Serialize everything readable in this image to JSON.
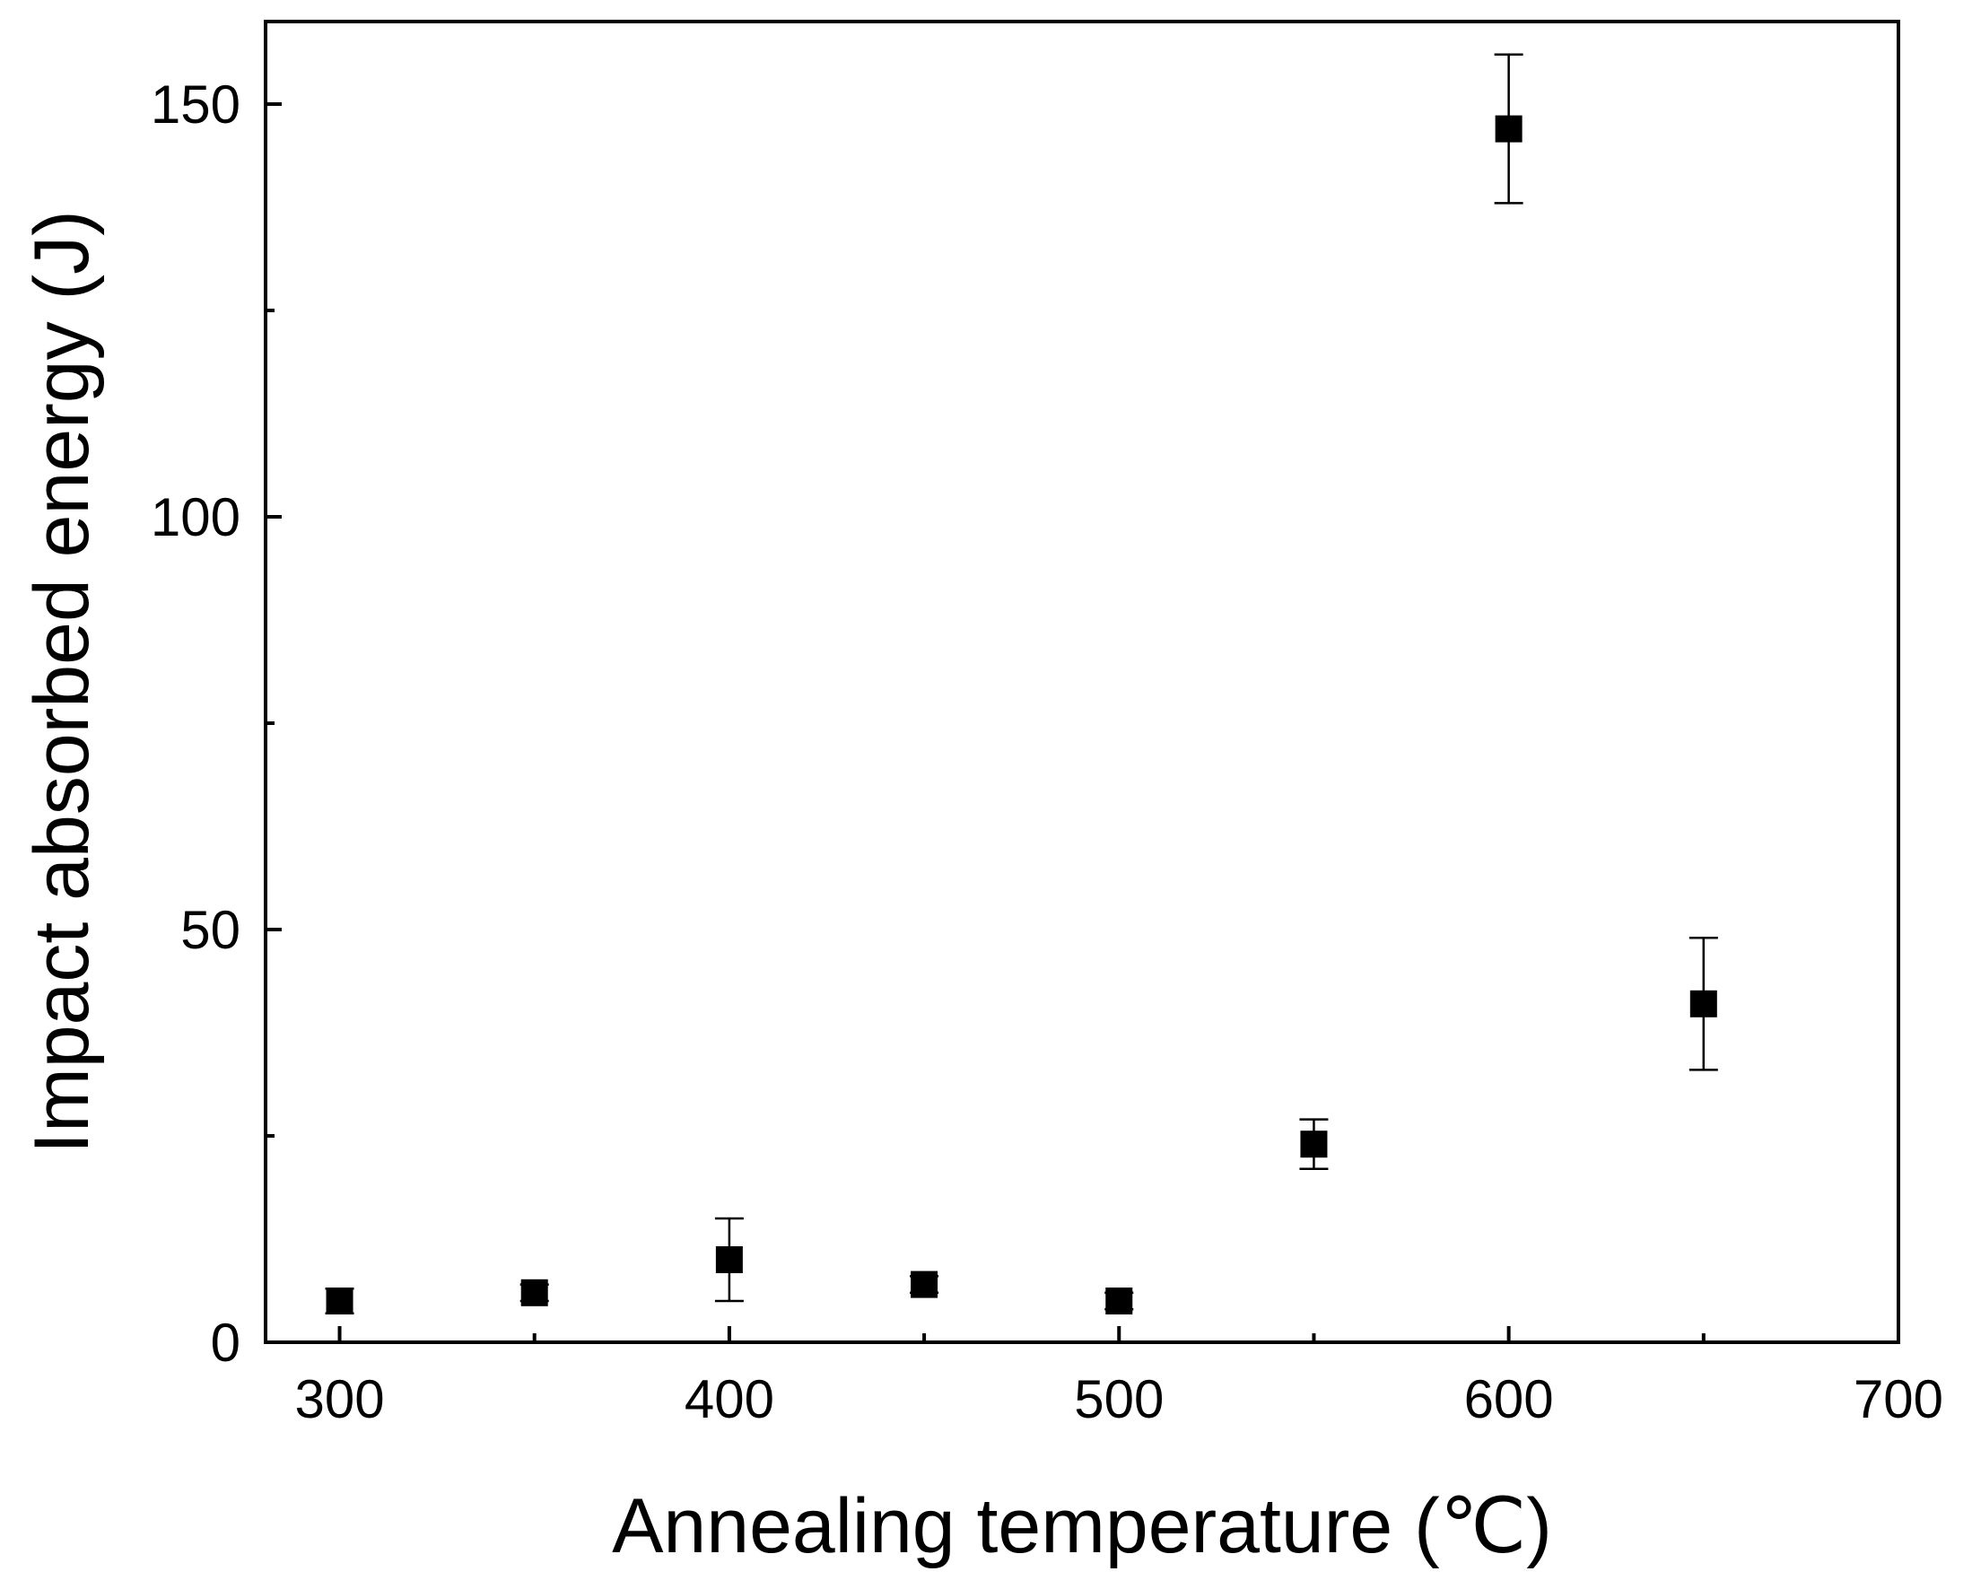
{
  "chart_data": {
    "type": "scatter",
    "title": "",
    "xlabel": "Annealing temperature (℃)",
    "ylabel": "Impact absorbed energy (J)",
    "xlim": [
      281,
      700
    ],
    "ylim": [
      0,
      160
    ],
    "xticks": [
      300,
      350,
      400,
      450,
      500,
      550,
      600,
      650,
      700
    ],
    "xtick_labels": [
      "300",
      "400",
      "500",
      "600",
      "700"
    ],
    "xtick_label_values": [
      300,
      400,
      500,
      600,
      700
    ],
    "yticks": [
      0,
      25,
      50,
      75,
      100,
      125,
      150
    ],
    "ytick_labels": [
      "0",
      "50",
      "100",
      "150"
    ],
    "ytick_label_values": [
      0,
      50,
      100,
      150
    ],
    "grid": false,
    "legend": null,
    "series": [
      {
        "name": "Impact absorbed energy",
        "marker": "square",
        "color": "#000000",
        "x": [
          300,
          350,
          400,
          450,
          500,
          550,
          600,
          650
        ],
        "y": [
          5,
          6,
          10,
          7,
          5,
          24,
          147,
          41
        ],
        "error": [
          1.5,
          1,
          5,
          1,
          1,
          3,
          9,
          8
        ]
      }
    ]
  }
}
